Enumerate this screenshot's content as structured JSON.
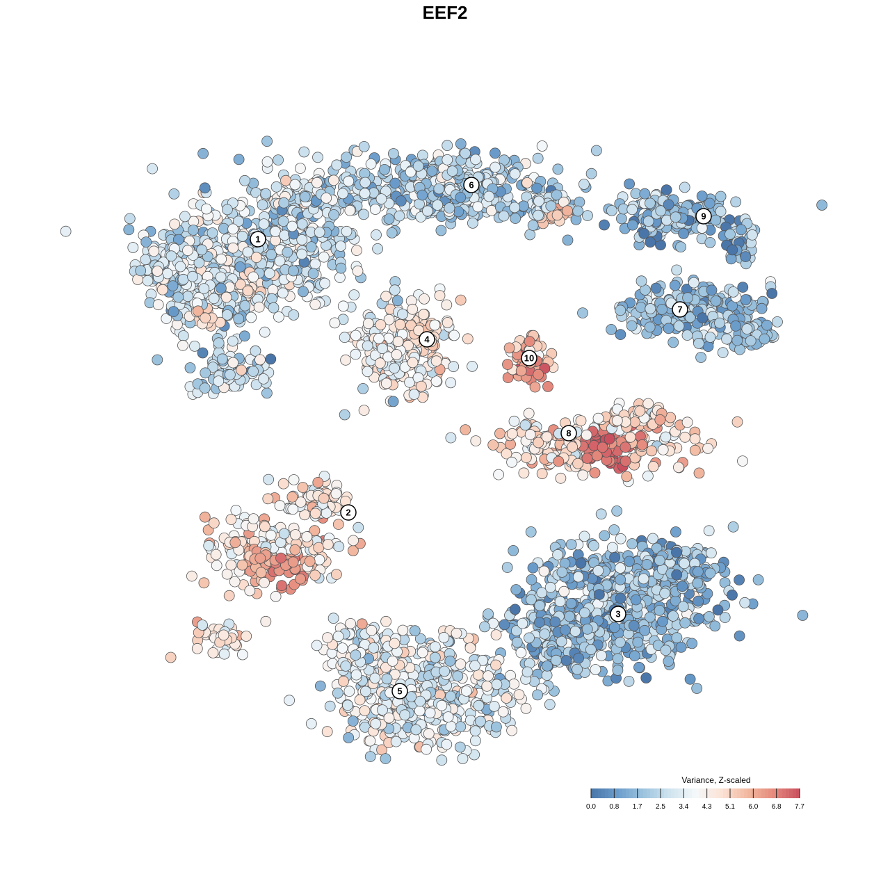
{
  "chart_data": {
    "type": "scatter",
    "title": "EEF2",
    "xlabel": "",
    "ylabel": "",
    "grid": false,
    "axes_visible": false,
    "point_count_approx": 4200,
    "color_scale": {
      "title": "Variance, Z-scaled",
      "min": 0.0,
      "max": 7.7,
      "ticks": [
        "0.0",
        "0.8",
        "1.7",
        "2.5",
        "3.4",
        "4.3",
        "5.1",
        "6.0",
        "6.8",
        "7.7"
      ],
      "colors": [
        "#4a75a8",
        "#6a9ccb",
        "#9cc3de",
        "#cfe3ef",
        "#f5f8fa",
        "#fbe3d6",
        "#f2b8a0",
        "#e58a7d",
        "#c94f5f"
      ],
      "placement": "bottom-right"
    },
    "clusters": [
      {
        "label": "1",
        "mean_z": 2.9
      },
      {
        "label": "2",
        "mean_z": 4.4
      },
      {
        "label": "3",
        "mean_z": 1.9
      },
      {
        "label": "4",
        "mean_z": 3.9
      },
      {
        "label": "5",
        "mean_z": 3.5
      },
      {
        "label": "6",
        "mean_z": 2.4
      },
      {
        "label": "7",
        "mean_z": 2.0
      },
      {
        "label": "8",
        "mean_z": 4.8
      },
      {
        "label": "9",
        "mean_z": 1.7
      },
      {
        "label": "10",
        "mean_z": 5.7
      }
    ]
  }
}
